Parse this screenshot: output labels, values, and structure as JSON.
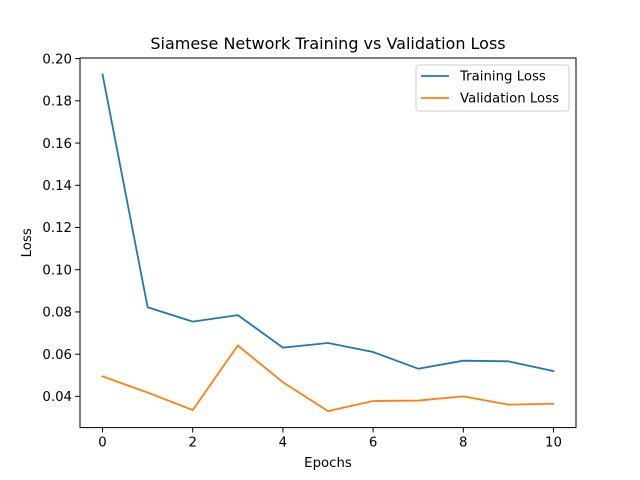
{
  "chart_data": {
    "type": "line",
    "title": "Siamese Network Training vs Validation Loss",
    "xlabel": "Epochs",
    "ylabel": "Loss",
    "x": [
      0,
      1,
      2,
      3,
      4,
      5,
      6,
      7,
      8,
      9,
      10
    ],
    "series": [
      {
        "name": "Training Loss",
        "color": "#1f77b4",
        "values": [
          0.1925,
          0.0822,
          0.0754,
          0.0785,
          0.0631,
          0.0653,
          0.061,
          0.0531,
          0.0569,
          0.0566,
          0.052
        ]
      },
      {
        "name": "Validation Loss",
        "color": "#ff7f0e",
        "values": [
          0.0495,
          0.0418,
          0.0335,
          0.0641,
          0.0467,
          0.033,
          0.0378,
          0.038,
          0.04,
          0.0361,
          0.0365
        ]
      }
    ],
    "xlim": [
      -0.5,
      10.5
    ],
    "ylim": [
      0.0252,
      0.2003
    ],
    "xticks": [
      "0",
      "2",
      "4",
      "6",
      "8",
      "10"
    ],
    "yticks": [
      "0.04",
      "0.06",
      "0.08",
      "0.10",
      "0.12",
      "0.14",
      "0.16",
      "0.18",
      "0.20"
    ],
    "grid": false,
    "legend_position": "top-right"
  }
}
